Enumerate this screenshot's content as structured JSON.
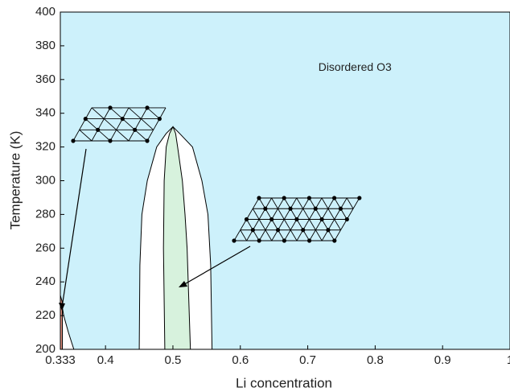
{
  "chart_data": {
    "type": "area",
    "xlabel": "Li concentration",
    "ylabel": "Temperature (K)",
    "xlim": [
      0.333,
      1
    ],
    "ylim": [
      200,
      400
    ],
    "xticks": [
      0.333,
      0.4,
      0.5,
      0.6,
      0.7,
      0.8,
      0.9,
      1
    ],
    "yticks": [
      200,
      220,
      240,
      260,
      280,
      300,
      320,
      340,
      360,
      380,
      400
    ],
    "background_color": "#cdf1fb",
    "annotations": [
      {
        "text": "Disordered O3",
        "x": 0.77,
        "y": 367
      }
    ],
    "series": [
      {
        "color": "#ffffff",
        "x": [
          0.45,
          0.451,
          0.454,
          0.462,
          0.476,
          0.49,
          0.5,
          0.51,
          0.529,
          0.543,
          0.552,
          0.556,
          0.558
        ],
        "values": [
          200,
          250,
          280,
          300,
          320,
          328,
          332,
          328,
          320,
          300,
          280,
          250,
          200
        ]
      },
      {
        "color": "#d7f2dd",
        "x": [
          0.488,
          0.486,
          0.487,
          0.49,
          0.495,
          0.5,
          0.504,
          0.507,
          0.514,
          0.518,
          0.521,
          0.526
        ],
        "values": [
          200,
          260,
          300,
          320,
          328,
          332,
          328,
          320,
          300,
          280,
          260,
          200
        ]
      },
      {
        "color": "#ffffff",
        "x": [
          0.333,
          0.333,
          0.338,
          0.345,
          0.353
        ],
        "values": [
          200,
          232,
          220,
          210,
          200
        ]
      },
      {
        "color": "#e0917f",
        "x": [
          0.333,
          0.333,
          0.336,
          0.336
        ],
        "values": [
          200,
          232,
          228,
          200
        ]
      }
    ]
  }
}
